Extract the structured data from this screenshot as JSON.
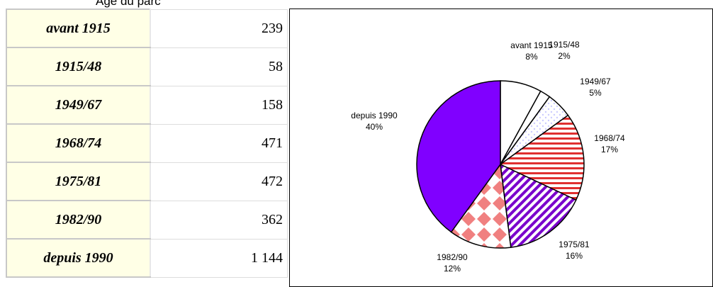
{
  "title": "Âge du parc",
  "table": {
    "rows": [
      [
        "avant 1915",
        "239"
      ],
      [
        "1915/48",
        "58"
      ],
      [
        "1949/67",
        "158"
      ],
      [
        "1968/74",
        "471"
      ],
      [
        "1975/81",
        "472"
      ],
      [
        "1982/90",
        "362"
      ],
      [
        "depuis 1990",
        "1 144"
      ]
    ]
  },
  "chart_data": {
    "type": "pie",
    "categories": [
      "avant 1915",
      "1915/48",
      "1949/67",
      "1968/74",
      "1975/81",
      "1982/90",
      "depuis 1990"
    ],
    "values": [
      8,
      2,
      5,
      17,
      16,
      12,
      40
    ],
    "value_labels": [
      "8%",
      "2%",
      "5%",
      "17%",
      "16%",
      "12%",
      "40%"
    ],
    "colors": [
      "#ffffff",
      "#ffffff",
      "#ccccff",
      "#e03030",
      "#7a00cc",
      "#f08080",
      "#8000ff"
    ],
    "patterns": [
      "none",
      "none",
      "dots",
      "hstripes",
      "dstripes",
      "diamonds",
      "none"
    ]
  }
}
